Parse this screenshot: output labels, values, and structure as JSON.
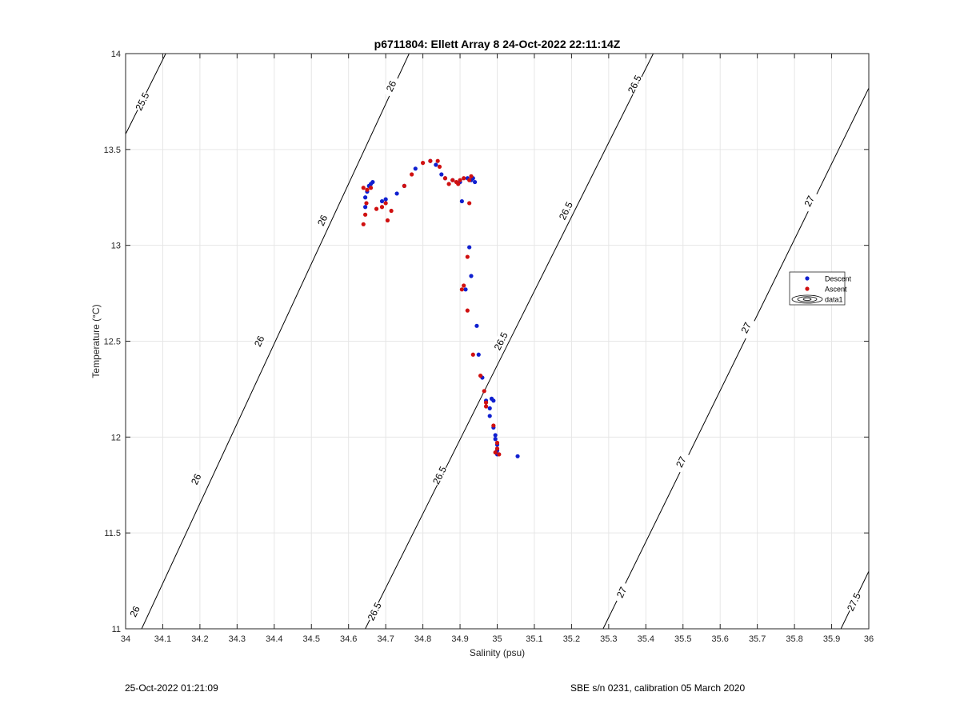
{
  "chart_data": {
    "type": "scatter",
    "title": "p6711804: Ellett Array 8 24-Oct-2022 22:11:14Z",
    "xlabel": "Salinity (psu)",
    "ylabel": "Temperature (°C)",
    "xlim": [
      34,
      36
    ],
    "ylim": [
      11,
      14
    ],
    "x_ticks": [
      "34",
      "34.1",
      "34.2",
      "34.3",
      "34.4",
      "34.5",
      "34.6",
      "34.7",
      "34.8",
      "34.9",
      "35",
      "35.1",
      "35.2",
      "35.3",
      "35.4",
      "35.5",
      "35.6",
      "35.7",
      "35.8",
      "35.9",
      "36"
    ],
    "y_ticks": [
      "11",
      "11.5",
      "12",
      "12.5",
      "13",
      "13.5",
      "14"
    ],
    "grid": true,
    "legend_position": "right",
    "legend": [
      {
        "name": "Descent",
        "color": "#1020d0",
        "marker": "dot"
      },
      {
        "name": "Ascent",
        "color": "#d01010",
        "marker": "dot"
      },
      {
        "name": "data1",
        "color": "#000000",
        "marker": "contour"
      }
    ],
    "contours": {
      "name": "data1",
      "color": "#000000",
      "lines": [
        {
          "label": "25.5",
          "points": [
            [
              34.0,
              13.58
            ],
            [
              34.108,
              14.0
            ]
          ],
          "label_positions": [
            [
              34.045,
              13.75
            ]
          ]
        },
        {
          "label": "26",
          "points": [
            [
              34.0,
              10.82
            ],
            [
              34.763,
              14.0
            ]
          ],
          "label_positions": [
            [
              34.025,
              11.09
            ],
            [
              34.19,
              11.78
            ],
            [
              34.36,
              12.5
            ],
            [
              34.53,
              13.13
            ],
            [
              34.715,
              13.83
            ]
          ]
        },
        {
          "label": "26.5",
          "points": [
            [
              34.645,
              11.0
            ],
            [
              35.42,
              14.0
            ]
          ],
          "label_positions": [
            [
              34.67,
              11.09
            ],
            [
              34.845,
              11.8
            ],
            [
              35.01,
              12.5
            ],
            [
              35.185,
              13.18
            ],
            [
              35.37,
              13.84
            ]
          ]
        },
        {
          "label": "27",
          "points": [
            [
              35.285,
              11.0
            ],
            [
              36.0,
              13.82
            ]
          ],
          "label_positions": [
            [
              35.335,
              11.19
            ],
            [
              35.495,
              11.87
            ],
            [
              35.67,
              12.57
            ],
            [
              35.84,
              13.23
            ]
          ]
        },
        {
          "label": "27.5",
          "points": [
            [
              35.925,
              11.0
            ],
            [
              36.0,
              11.3
            ]
          ],
          "label_positions": [
            [
              35.96,
              11.14
            ]
          ]
        }
      ]
    },
    "series": [
      {
        "name": "Descent",
        "color": "#1020d0",
        "points": [
          [
            35.055,
            11.9
          ],
          [
            35.0,
            11.91
          ],
          [
            35.0,
            11.93
          ],
          [
            35.0,
            11.96
          ],
          [
            34.995,
            11.99
          ],
          [
            34.995,
            12.01
          ],
          [
            34.99,
            12.05
          ],
          [
            34.98,
            12.11
          ],
          [
            34.98,
            12.15
          ],
          [
            34.99,
            12.19
          ],
          [
            34.985,
            12.2
          ],
          [
            34.97,
            12.19
          ],
          [
            34.96,
            12.31
          ],
          [
            34.95,
            12.43
          ],
          [
            34.945,
            12.58
          ],
          [
            34.93,
            12.84
          ],
          [
            34.915,
            12.77
          ],
          [
            34.925,
            12.99
          ],
          [
            34.905,
            13.23
          ],
          [
            34.94,
            13.33
          ],
          [
            34.935,
            13.35
          ],
          [
            34.93,
            13.34
          ],
          [
            34.92,
            13.35
          ],
          [
            34.9,
            13.33
          ],
          [
            34.88,
            13.34
          ],
          [
            34.86,
            13.35
          ],
          [
            34.85,
            13.37
          ],
          [
            34.835,
            13.42
          ],
          [
            34.82,
            13.44
          ],
          [
            34.78,
            13.4
          ],
          [
            34.75,
            13.31
          ],
          [
            34.73,
            13.27
          ],
          [
            34.7,
            13.24
          ],
          [
            34.69,
            13.23
          ],
          [
            34.665,
            13.33
          ],
          [
            34.66,
            13.32
          ],
          [
            34.655,
            13.31
          ],
          [
            34.65,
            13.28
          ],
          [
            34.645,
            13.25
          ],
          [
            34.645,
            13.2
          ]
        ]
      },
      {
        "name": "Ascent",
        "color": "#d01010",
        "points": [
          [
            34.64,
            13.11
          ],
          [
            34.645,
            13.16
          ],
          [
            34.648,
            13.22
          ],
          [
            34.64,
            13.3
          ],
          [
            34.65,
            13.29
          ],
          [
            34.66,
            13.3
          ],
          [
            34.675,
            13.19
          ],
          [
            34.69,
            13.2
          ],
          [
            34.705,
            13.13
          ],
          [
            34.715,
            13.18
          ],
          [
            34.7,
            13.22
          ],
          [
            34.75,
            13.31
          ],
          [
            34.77,
            13.37
          ],
          [
            34.8,
            13.43
          ],
          [
            34.82,
            13.44
          ],
          [
            34.84,
            13.44
          ],
          [
            34.845,
            13.41
          ],
          [
            34.86,
            13.35
          ],
          [
            34.87,
            13.32
          ],
          [
            34.88,
            13.34
          ],
          [
            34.89,
            13.33
          ],
          [
            34.895,
            13.32
          ],
          [
            34.9,
            13.34
          ],
          [
            34.91,
            13.35
          ],
          [
            34.925,
            13.34
          ],
          [
            34.93,
            13.36
          ],
          [
            34.925,
            13.22
          ],
          [
            34.92,
            12.94
          ],
          [
            34.91,
            12.79
          ],
          [
            34.905,
            12.77
          ],
          [
            34.92,
            12.66
          ],
          [
            34.935,
            12.43
          ],
          [
            34.955,
            12.32
          ],
          [
            34.965,
            12.24
          ],
          [
            34.97,
            12.18
          ],
          [
            34.97,
            12.16
          ],
          [
            34.99,
            12.06
          ],
          [
            35.0,
            11.97
          ],
          [
            35.0,
            11.94
          ],
          [
            34.995,
            11.92
          ],
          [
            35.005,
            11.91
          ]
        ]
      }
    ]
  },
  "footer": {
    "left": "25-Oct-2022 01:21:09",
    "right": "SBE s/n 0231, calibration 05 March 2020"
  }
}
